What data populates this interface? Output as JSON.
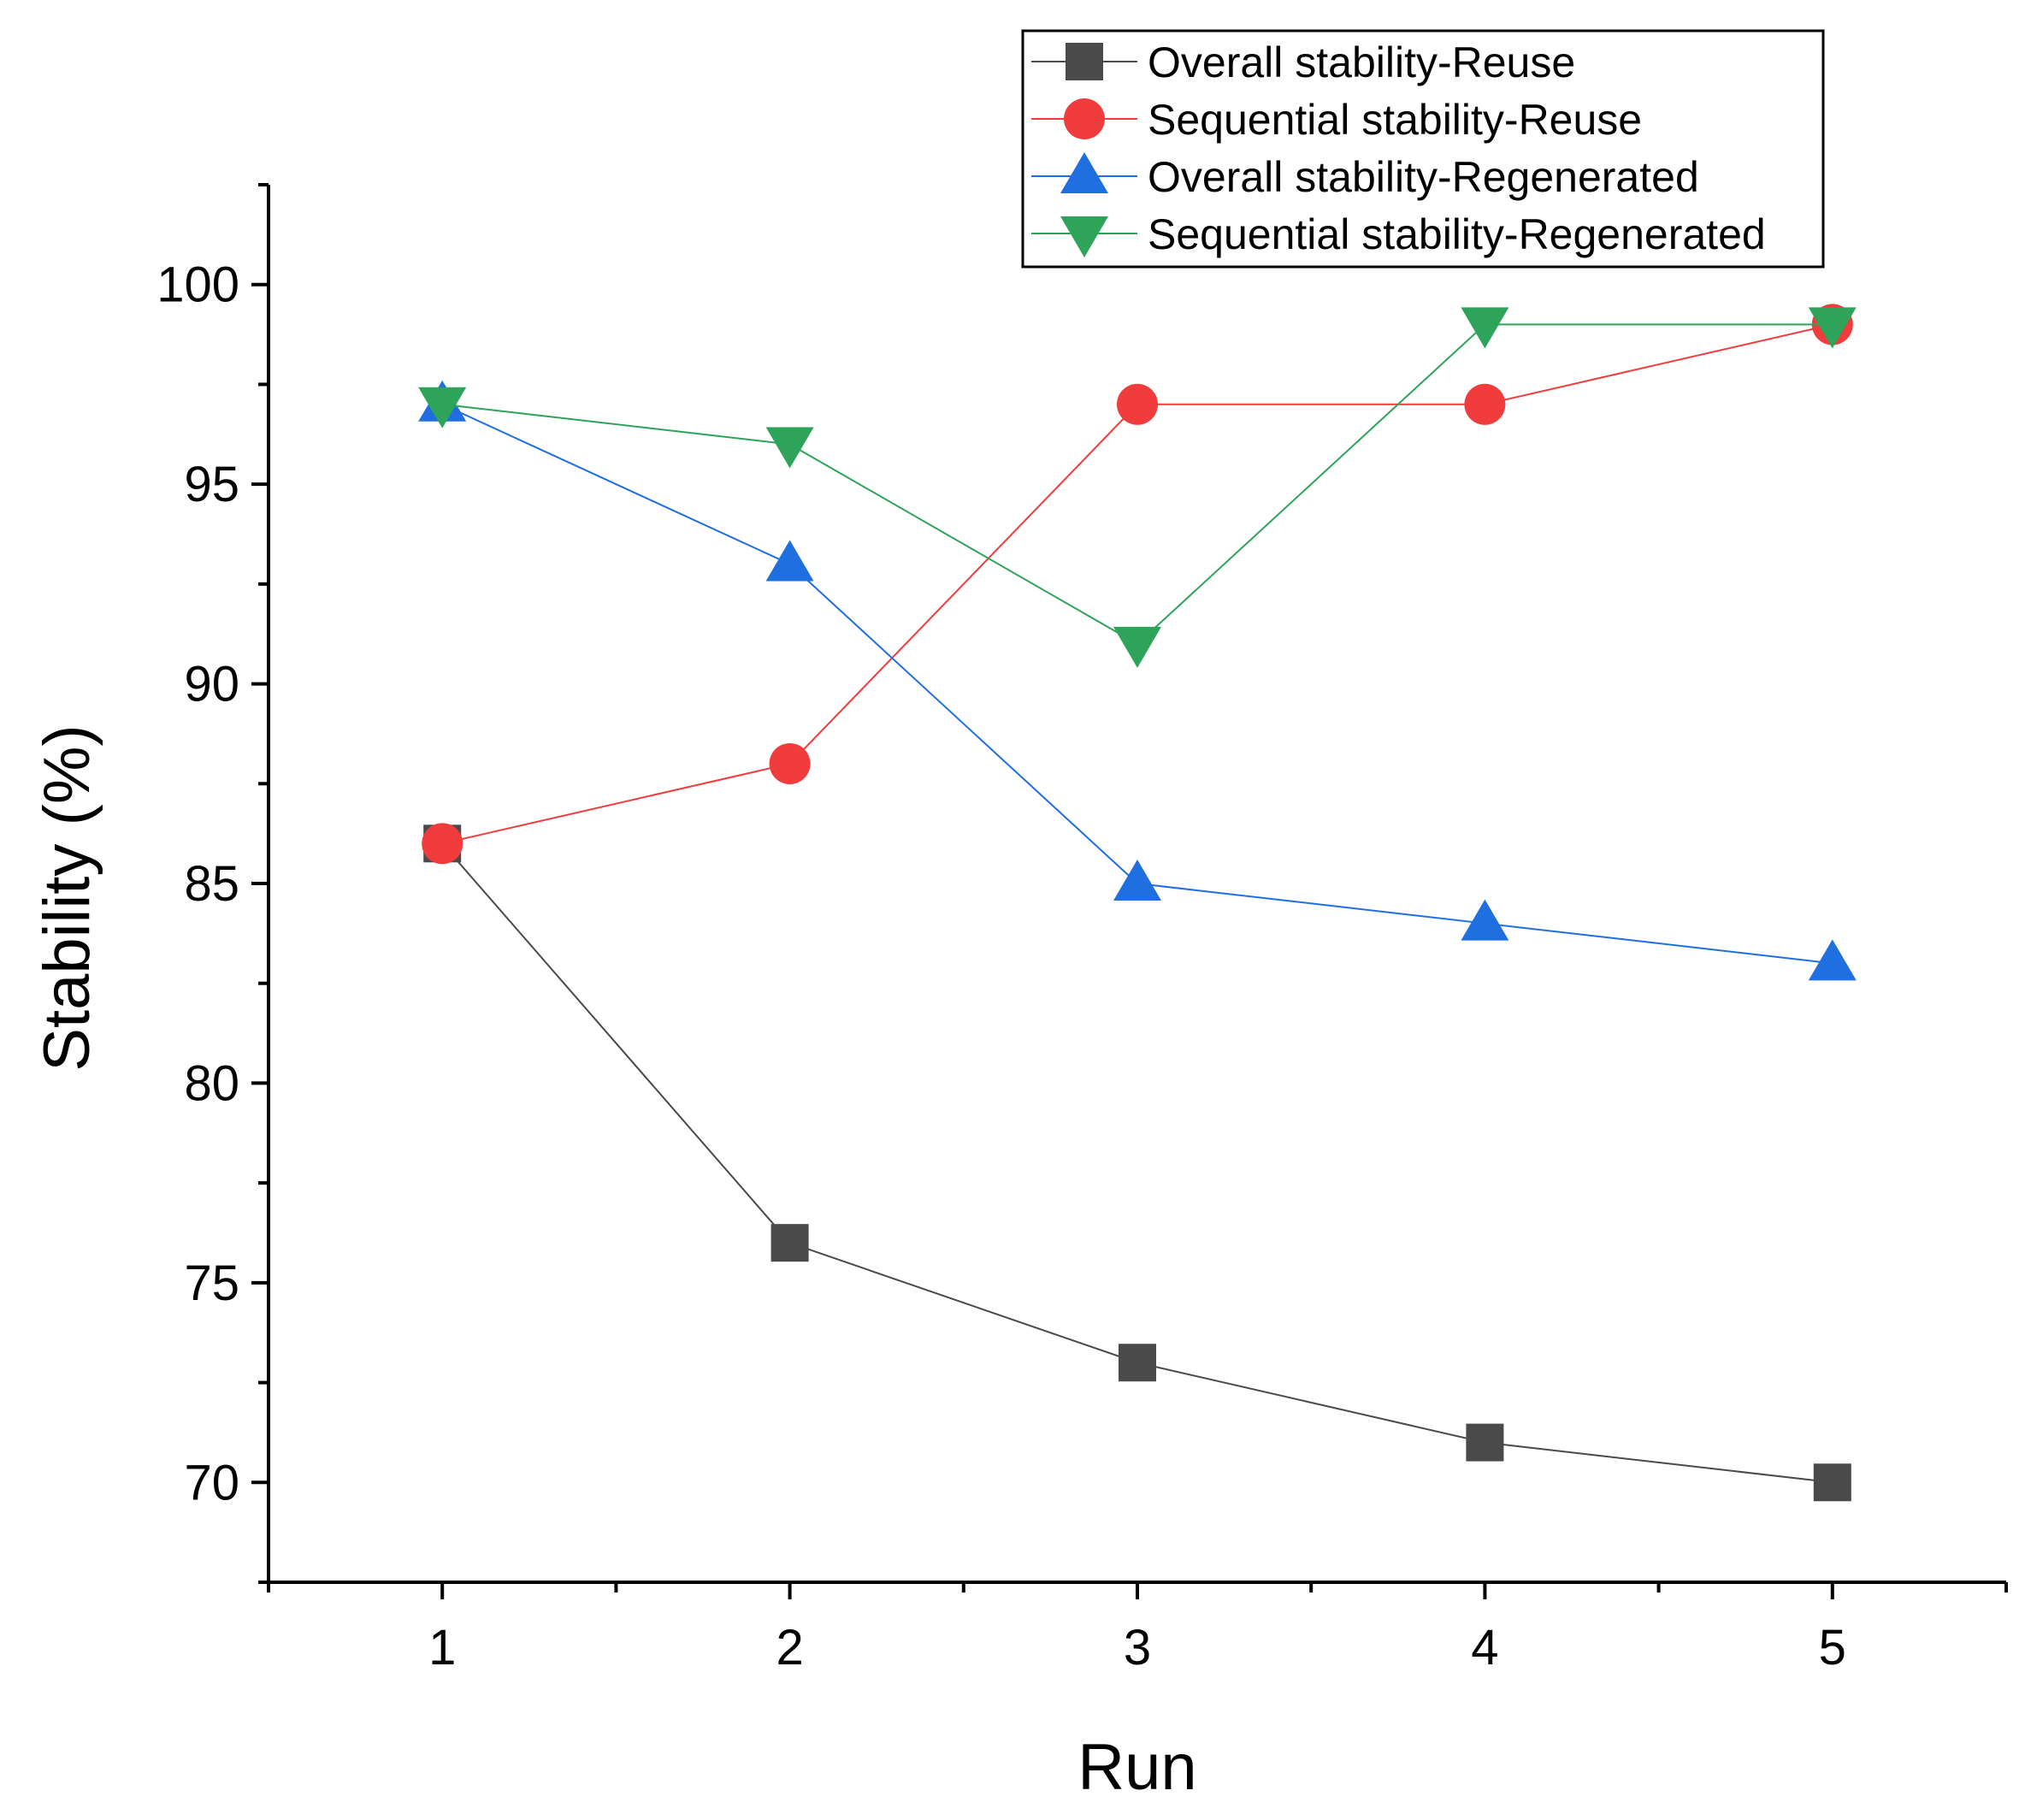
{
  "chart_data": {
    "type": "line",
    "title": "",
    "xlabel": "Run",
    "ylabel": "Stability (%)",
    "x": [
      1,
      2,
      3,
      4,
      5
    ],
    "xlim": [
      0.5,
      5.5
    ],
    "ylim": [
      67.5,
      102.5
    ],
    "xticks": [
      1,
      2,
      3,
      4,
      5
    ],
    "yticks": [
      70,
      75,
      80,
      85,
      90,
      95,
      100
    ],
    "grid": false,
    "legend_position": "top-right",
    "series": [
      {
        "name": "Overall stability-Reuse",
        "values": [
          86,
          76,
          73,
          71,
          70
        ],
        "color": "#4a4a4a",
        "marker": "square"
      },
      {
        "name": "Sequential stability-Reuse",
        "values": [
          86,
          88,
          97,
          97,
          99
        ],
        "color": "#f03c3c",
        "marker": "circle"
      },
      {
        "name": "Overall stability-Regenerated",
        "values": [
          97,
          93,
          85,
          84,
          83
        ],
        "color": "#1f6fe0",
        "marker": "triangle-up"
      },
      {
        "name": "Sequential stability-Regenerated",
        "values": [
          97,
          96,
          91,
          99,
          99
        ],
        "color": "#2ea35a",
        "marker": "triangle-down"
      }
    ]
  }
}
